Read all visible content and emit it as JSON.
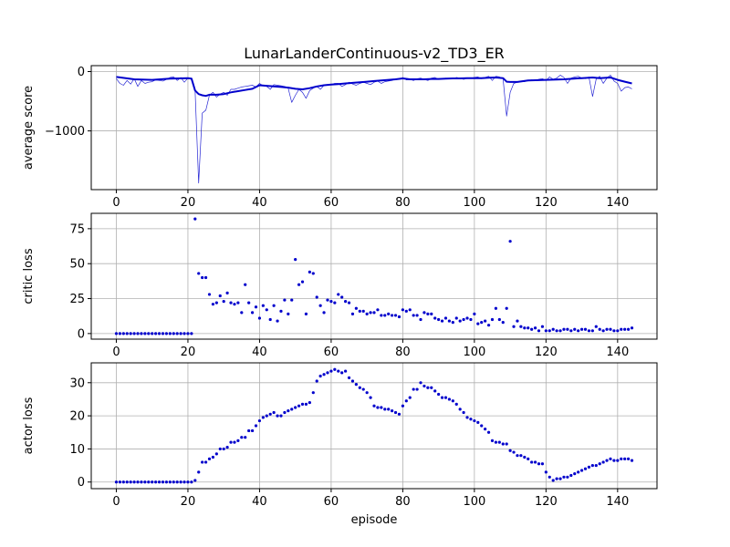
{
  "figure": {
    "title": "LunarLanderContinuous-v2_TD3_ER",
    "xlabel": "episode"
  },
  "colors": {
    "series": "#0000cc",
    "grid": "#b0b0b0",
    "axes": "#000000",
    "background": "#ffffff"
  },
  "chart_data": [
    {
      "type": "line",
      "title": "LunarLanderContinuous-v2_TD3_ER",
      "xlabel": "",
      "ylabel": "average score",
      "xlim": [
        -7,
        151
      ],
      "ylim": [
        -1990,
        100
      ],
      "xticks": [
        0,
        20,
        40,
        60,
        80,
        100,
        120,
        140
      ],
      "yticks": [
        0,
        -1000
      ],
      "grid": true,
      "series": [
        {
          "name": "",
          "style": "thin",
          "x": [
            0,
            1,
            2,
            3,
            4,
            5,
            6,
            7,
            8,
            9,
            10,
            11,
            12,
            13,
            14,
            15,
            16,
            17,
            18,
            19,
            20,
            21,
            22,
            23,
            24,
            25,
            26,
            27,
            28,
            29,
            30,
            31,
            32,
            33,
            34,
            35,
            36,
            37,
            38,
            39,
            40,
            41,
            42,
            43,
            44,
            45,
            46,
            47,
            48,
            49,
            50,
            51,
            52,
            53,
            54,
            55,
            56,
            57,
            58,
            59,
            60,
            61,
            62,
            63,
            64,
            65,
            66,
            67,
            68,
            69,
            70,
            71,
            72,
            73,
            74,
            75,
            76,
            77,
            78,
            79,
            80,
            81,
            82,
            83,
            84,
            85,
            86,
            87,
            88,
            89,
            90,
            91,
            92,
            93,
            94,
            95,
            96,
            97,
            98,
            99,
            100,
            101,
            102,
            103,
            104,
            105,
            106,
            107,
            108,
            109,
            110,
            111,
            112,
            113,
            114,
            115,
            116,
            117,
            118,
            119,
            120,
            121,
            122,
            123,
            124,
            125,
            126,
            127,
            128,
            129,
            130,
            131,
            132,
            133,
            134,
            135,
            136,
            137,
            138,
            139,
            140,
            141,
            142,
            143,
            144
          ],
          "y": [
            -120,
            -200,
            -230,
            -150,
            -210,
            -120,
            -250,
            -150,
            -200,
            -180,
            -170,
            -140,
            -150,
            -160,
            -130,
            -100,
            -90,
            -150,
            -100,
            -180,
            -110,
            -120,
            -320,
            -1880,
            -700,
            -650,
            -400,
            -350,
            -430,
            -380,
            -350,
            -400,
            -300,
            -300,
            -280,
            -260,
            -250,
            -240,
            -230,
            -260,
            -200,
            -240,
            -250,
            -300,
            -220,
            -230,
            -240,
            -250,
            -280,
            -520,
            -400,
            -300,
            -350,
            -450,
            -320,
            -280,
            -250,
            -300,
            -230,
            -230,
            -220,
            -200,
            -200,
            -250,
            -220,
            -180,
            -210,
            -230,
            -200,
            -180,
            -200,
            -220,
            -180,
            -160,
            -200,
            -170,
            -160,
            -150,
            -120,
            -130,
            -100,
            -140,
            -130,
            -150,
            -120,
            -110,
            -130,
            -150,
            -110,
            -100,
            -130,
            -120,
            -110,
            -120,
            -120,
            -100,
            -110,
            -130,
            -110,
            -110,
            -100,
            -90,
            -120,
            -100,
            -80,
            -150,
            -80,
            -90,
            -120,
            -750,
            -350,
            -200,
            -180,
            -160,
            -170,
            -150,
            -140,
            -150,
            -130,
            -120,
            -150,
            -90,
            -130,
            -110,
            -60,
            -100,
            -200,
            -110,
            -90,
            -80,
            -110,
            -120,
            -90,
            -420,
            -130,
            -80,
            -200,
            -110,
            -60,
            -160,
            -200,
            -330,
            -270,
            -260,
            -290
          ]
        },
        {
          "name": "",
          "style": "thick",
          "x": [
            0,
            5,
            10,
            15,
            20,
            21,
            22,
            23,
            24,
            25,
            26,
            28,
            30,
            32,
            34,
            36,
            38,
            40,
            42,
            44,
            46,
            48,
            50,
            52,
            54,
            56,
            58,
            60,
            62,
            64,
            66,
            68,
            70,
            72,
            74,
            76,
            78,
            80,
            82,
            84,
            86,
            88,
            90,
            92,
            94,
            96,
            98,
            100,
            102,
            104,
            106,
            108,
            109,
            110,
            112,
            115,
            120,
            125,
            130,
            133,
            135,
            138,
            140,
            142,
            144
          ],
          "y": [
            -90,
            -130,
            -140,
            -120,
            -110,
            -120,
            -320,
            -380,
            -400,
            -410,
            -390,
            -390,
            -380,
            -350,
            -330,
            -310,
            -290,
            -230,
            -240,
            -250,
            -260,
            -270,
            -290,
            -300,
            -280,
            -250,
            -230,
            -220,
            -210,
            -200,
            -190,
            -180,
            -170,
            -160,
            -150,
            -140,
            -130,
            -115,
            -130,
            -130,
            -130,
            -125,
            -125,
            -120,
            -115,
            -115,
            -110,
            -110,
            -110,
            -105,
            -100,
            -110,
            -170,
            -175,
            -175,
            -150,
            -140,
            -130,
            -110,
            -100,
            -110,
            -100,
            -140,
            -170,
            -200
          ]
        }
      ]
    },
    {
      "type": "scatter",
      "title": "",
      "xlabel": "",
      "ylabel": "critic loss",
      "xlim": [
        -7,
        151
      ],
      "ylim": [
        -4,
        86
      ],
      "xticks": [
        0,
        20,
        40,
        60,
        80,
        100,
        120,
        140
      ],
      "yticks": [
        0,
        25,
        50,
        75
      ],
      "grid": true,
      "series": [
        {
          "name": "",
          "x": [
            0,
            1,
            2,
            3,
            4,
            5,
            6,
            7,
            8,
            9,
            10,
            11,
            12,
            13,
            14,
            15,
            16,
            17,
            18,
            19,
            20,
            21,
            22,
            23,
            24,
            25,
            26,
            27,
            28,
            29,
            30,
            31,
            32,
            33,
            34,
            35,
            36,
            37,
            38,
            39,
            40,
            41,
            42,
            43,
            44,
            45,
            46,
            47,
            48,
            49,
            50,
            51,
            52,
            53,
            54,
            55,
            56,
            57,
            58,
            59,
            60,
            61,
            62,
            63,
            64,
            65,
            66,
            67,
            68,
            69,
            70,
            71,
            72,
            73,
            74,
            75,
            76,
            77,
            78,
            79,
            80,
            81,
            82,
            83,
            84,
            85,
            86,
            87,
            88,
            89,
            90,
            91,
            92,
            93,
            94,
            95,
            96,
            97,
            98,
            99,
            100,
            101,
            102,
            103,
            104,
            105,
            106,
            107,
            108,
            109,
            110,
            111,
            112,
            113,
            114,
            115,
            116,
            117,
            118,
            119,
            120,
            121,
            122,
            123,
            124,
            125,
            126,
            127,
            128,
            129,
            130,
            131,
            132,
            133,
            134,
            135,
            136,
            137,
            138,
            139,
            140,
            141,
            142,
            143,
            144
          ],
          "y": [
            0,
            0,
            0,
            0,
            0,
            0,
            0,
            0,
            0,
            0,
            0,
            0,
            0,
            0,
            0,
            0,
            0,
            0,
            0,
            0,
            0,
            0,
            82,
            43,
            40,
            40,
            28,
            21,
            22,
            27,
            23,
            29,
            22,
            21,
            22,
            15,
            35,
            22,
            15,
            19,
            11,
            20,
            17,
            10,
            20,
            9,
            16,
            24,
            14,
            24,
            53,
            35,
            37,
            14,
            44,
            43,
            26,
            20,
            15,
            24,
            23,
            22,
            28,
            26,
            23,
            22,
            14,
            18,
            16,
            16,
            14,
            15,
            15,
            17,
            13,
            13,
            14,
            13,
            13,
            12,
            17,
            16,
            17,
            13,
            13,
            10,
            15,
            14,
            14,
            11,
            10,
            9,
            11,
            9,
            8,
            11,
            9,
            10,
            11,
            10,
            14,
            7,
            8,
            9,
            6,
            10,
            18,
            10,
            8,
            18,
            66,
            5,
            9,
            5,
            4,
            4,
            3,
            4,
            2,
            5,
            2,
            2,
            3,
            2,
            2,
            3,
            3,
            2,
            3,
            2,
            3,
            3,
            2,
            2,
            5,
            3,
            2,
            3,
            3,
            2,
            2,
            3,
            3,
            3,
            4
          ]
        }
      ]
    },
    {
      "type": "scatter",
      "title": "",
      "xlabel": "episode",
      "ylabel": "actor loss",
      "xlim": [
        -7,
        151
      ],
      "ylim": [
        -2,
        36
      ],
      "xticks": [
        0,
        20,
        40,
        60,
        80,
        100,
        120,
        140
      ],
      "yticks": [
        0,
        10,
        20,
        30
      ],
      "grid": true,
      "series": [
        {
          "name": "",
          "x": [
            0,
            1,
            2,
            3,
            4,
            5,
            6,
            7,
            8,
            9,
            10,
            11,
            12,
            13,
            14,
            15,
            16,
            17,
            18,
            19,
            20,
            21,
            22,
            23,
            24,
            25,
            26,
            27,
            28,
            29,
            30,
            31,
            32,
            33,
            34,
            35,
            36,
            37,
            38,
            39,
            40,
            41,
            42,
            43,
            44,
            45,
            46,
            47,
            48,
            49,
            50,
            51,
            52,
            53,
            54,
            55,
            56,
            57,
            58,
            59,
            60,
            61,
            62,
            63,
            64,
            65,
            66,
            67,
            68,
            69,
            70,
            71,
            72,
            73,
            74,
            75,
            76,
            77,
            78,
            79,
            80,
            81,
            82,
            83,
            84,
            85,
            86,
            87,
            88,
            89,
            90,
            91,
            92,
            93,
            94,
            95,
            96,
            97,
            98,
            99,
            100,
            101,
            102,
            103,
            104,
            105,
            106,
            107,
            108,
            109,
            110,
            111,
            112,
            113,
            114,
            115,
            116,
            117,
            118,
            119,
            120,
            121,
            122,
            123,
            124,
            125,
            126,
            127,
            128,
            129,
            130,
            131,
            132,
            133,
            134,
            135,
            136,
            137,
            138,
            139,
            140,
            141,
            142,
            143,
            144
          ],
          "y": [
            0,
            0,
            0,
            0,
            0,
            0,
            0,
            0,
            0,
            0,
            0,
            0,
            0,
            0,
            0,
            0,
            0,
            0,
            0,
            0,
            0,
            0,
            0.5,
            3,
            6,
            6,
            7,
            7.5,
            8.5,
            10,
            10,
            10.5,
            12,
            12,
            12.5,
            13.5,
            13.5,
            15.5,
            15.5,
            17,
            18.5,
            19.5,
            20,
            20.5,
            21,
            20,
            20,
            21,
            21.5,
            22,
            22.5,
            23,
            23.5,
            23.5,
            24,
            27,
            30.5,
            32,
            32.5,
            33,
            33.5,
            34,
            33.5,
            33,
            33.5,
            31.5,
            30.5,
            29.5,
            28.5,
            28,
            27,
            25.5,
            23,
            22.5,
            22.5,
            22,
            22,
            21.5,
            21,
            20.5,
            23,
            24.5,
            25.5,
            28,
            28,
            30,
            29,
            28.5,
            28.5,
            27.5,
            26.5,
            25.5,
            25.5,
            25,
            24.5,
            23.5,
            22,
            21,
            19.5,
            19,
            18.5,
            18,
            17,
            16,
            15,
            12.5,
            12,
            12,
            11.5,
            11.5,
            9.5,
            9,
            8,
            8,
            7.5,
            7,
            6,
            6,
            5.5,
            5.5,
            3,
            1.5,
            0.5,
            1,
            1,
            1.5,
            1.5,
            2,
            2.5,
            3,
            3.5,
            4,
            4.5,
            5,
            5,
            5.5,
            6,
            6.5,
            7,
            6.5,
            6.5,
            7,
            7,
            7,
            6.5
          ]
        }
      ]
    }
  ]
}
